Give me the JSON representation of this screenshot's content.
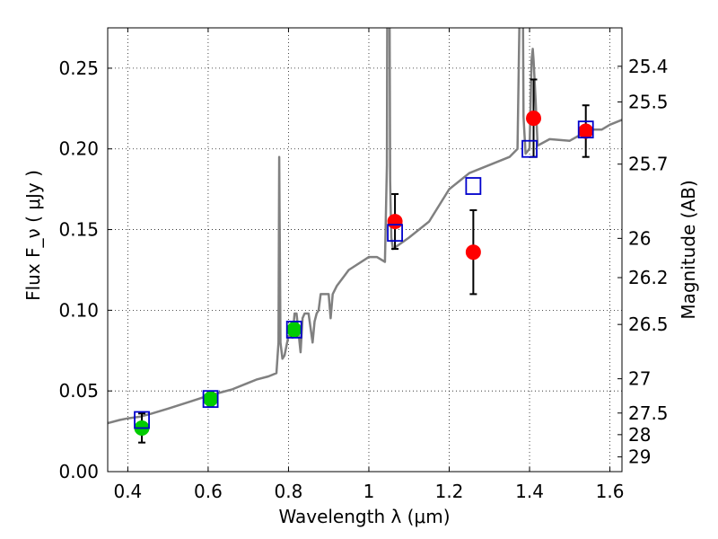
{
  "chart_data": {
    "type": "scatter",
    "xlabel": "Wavelength  λ (μm)",
    "ylabel": "Flux  F_ν  ( μJy )",
    "ylabel_right": "Magnitude (AB)",
    "xlim": [
      0.35,
      1.63
    ],
    "ylim": [
      0,
      0.275
    ],
    "grid": true,
    "x_ticks": [
      "0.4",
      "0.6",
      "0.8",
      "1",
      "1.2",
      "1.4",
      "1.6"
    ],
    "y_ticks": [
      "0.00",
      "0.05",
      "0.10",
      "0.15",
      "0.20",
      "0.25"
    ],
    "right_ticks": [
      "25.4",
      "25.5",
      "25.7",
      "26",
      "26.2",
      "26.5",
      "27",
      "27.5",
      "28",
      "29"
    ],
    "spectrum": {
      "color": "#808080",
      "x": [
        0.35,
        0.38,
        0.4,
        0.43,
        0.46,
        0.5,
        0.55,
        0.6,
        0.63,
        0.66,
        0.7,
        0.72,
        0.75,
        0.77,
        0.775,
        0.777,
        0.78,
        0.785,
        0.79,
        0.8,
        0.81,
        0.815,
        0.82,
        0.83,
        0.835,
        0.84,
        0.85,
        0.86,
        0.865,
        0.87,
        0.875,
        0.88,
        0.9,
        0.905,
        0.91,
        0.92,
        0.95,
        1.0,
        1.02,
        1.04,
        1.045,
        1.047,
        1.05,
        1.053,
        1.056,
        1.06,
        1.1,
        1.15,
        1.2,
        1.25,
        1.3,
        1.35,
        1.37,
        1.375,
        1.38,
        1.385,
        1.39,
        1.4,
        1.405,
        1.408,
        1.41,
        1.415,
        1.42,
        1.45,
        1.5,
        1.55,
        1.58,
        1.6,
        1.63
      ],
      "y": [
        0.03,
        0.032,
        0.033,
        0.034,
        0.036,
        0.039,
        0.043,
        0.047,
        0.049,
        0.051,
        0.055,
        0.057,
        0.059,
        0.061,
        0.08,
        0.195,
        0.08,
        0.07,
        0.072,
        0.084,
        0.083,
        0.098,
        0.098,
        0.074,
        0.095,
        0.098,
        0.098,
        0.08,
        0.093,
        0.098,
        0.1,
        0.11,
        0.11,
        0.095,
        0.11,
        0.115,
        0.125,
        0.133,
        0.133,
        0.13,
        0.19,
        0.4,
        0.4,
        0.18,
        0.145,
        0.138,
        0.145,
        0.155,
        0.175,
        0.185,
        0.19,
        0.195,
        0.2,
        0.28,
        0.45,
        0.22,
        0.197,
        0.2,
        0.255,
        0.262,
        0.255,
        0.23,
        0.202,
        0.206,
        0.205,
        0.212,
        0.212,
        0.215,
        0.218
      ]
    },
    "series": [
      {
        "name": "",
        "marker": "circle",
        "color": "#00cc00",
        "points": [
          {
            "x": 0.435,
            "y": 0.027,
            "err": 0.009
          },
          {
            "x": 0.606,
            "y": 0.045,
            "err": 0.004
          },
          {
            "x": 0.814,
            "y": 0.088,
            "err": 0.004
          }
        ]
      },
      {
        "name": "",
        "marker": "circle",
        "color": "#ff0000",
        "points": [
          {
            "x": 1.065,
            "y": 0.155,
            "err": 0.017
          },
          {
            "x": 1.26,
            "y": 0.136,
            "err": 0.026
          },
          {
            "x": 1.41,
            "y": 0.219,
            "err": 0.024
          },
          {
            "x": 1.54,
            "y": 0.211,
            "err": 0.016
          }
        ]
      },
      {
        "name": "",
        "marker": "square",
        "color": "#0000cc",
        "points": [
          {
            "x": 0.435,
            "y": 0.032
          },
          {
            "x": 0.606,
            "y": 0.045
          },
          {
            "x": 0.814,
            "y": 0.088
          },
          {
            "x": 1.065,
            "y": 0.148
          },
          {
            "x": 1.26,
            "y": 0.177
          },
          {
            "x": 1.4,
            "y": 0.2
          },
          {
            "x": 1.54,
            "y": 0.212
          }
        ]
      }
    ]
  }
}
